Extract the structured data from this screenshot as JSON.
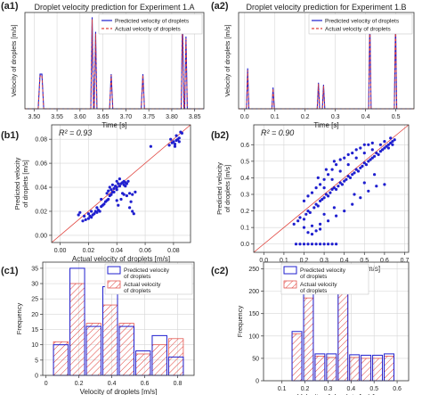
{
  "colors": {
    "blue": "#1f1fcf",
    "red": "#e0403a",
    "grid": "#d6d6d6"
  },
  "chart_data": [
    {
      "id": "a1",
      "panel_label": "(a1)",
      "type": "line",
      "title": "Droplet velocity prediction for Experiment 1.A",
      "xlabel": "Time [s]",
      "ylabel": "Velocity of droplets [m/s]",
      "xlim": [
        3.48,
        3.87
      ],
      "ylim": [
        0,
        1
      ],
      "xticks": [
        3.5,
        3.55,
        3.6,
        3.65,
        3.7,
        3.75,
        3.8,
        3.85
      ],
      "xtick_labels": [
        "3.50",
        "3.55",
        "3.60",
        "3.65",
        "3.70",
        "3.75",
        "3.80",
        "3.85"
      ],
      "legend_position": "top-right",
      "series": [
        {
          "name": "Predicted velocity of droplets",
          "style": "solid",
          "x": [
            3.48,
            3.509,
            3.513,
            3.517,
            3.521,
            3.6235,
            3.6265,
            3.6295,
            3.631,
            3.634,
            3.637,
            3.6645,
            3.668,
            3.6715,
            3.7335,
            3.737,
            3.7405,
            3.8205,
            3.8235,
            3.8265,
            3.828,
            3.831,
            3.834,
            3.87
          ],
          "y": [
            0,
            0,
            0.36,
            0.36,
            0,
            0,
            0.95,
            0,
            0,
            0.8,
            0,
            0,
            0.36,
            0,
            0,
            0.36,
            0,
            0,
            0.95,
            0,
            0,
            0.75,
            0,
            0
          ]
        },
        {
          "name": "Actual velocity of droplets",
          "style": "dashed",
          "x": [
            3.48,
            3.509,
            3.513,
            3.517,
            3.521,
            3.6235,
            3.6265,
            3.6295,
            3.631,
            3.634,
            3.637,
            3.6645,
            3.668,
            3.6715,
            3.7335,
            3.737,
            3.7405,
            3.8205,
            3.8235,
            3.8265,
            3.828,
            3.831,
            3.834,
            3.87
          ],
          "y": [
            0,
            0,
            0.34,
            0.35,
            0,
            0,
            0.93,
            0,
            0,
            0.78,
            0,
            0,
            0.35,
            0,
            0,
            0.35,
            0,
            0,
            0.92,
            0,
            0,
            0.73,
            0,
            0
          ]
        }
      ]
    },
    {
      "id": "a2",
      "panel_label": "(a2)",
      "type": "line",
      "title": "Droplet velocity prediction for Experiment 1.B",
      "xlabel": "Time [s]",
      "ylabel": "Velocity of droplets [m/s]",
      "xlim": [
        -0.02,
        0.56
      ],
      "ylim": [
        0,
        1
      ],
      "xticks": [
        0.0,
        0.1,
        0.2,
        0.3,
        0.4,
        0.5
      ],
      "xtick_labels": [
        "0.0",
        "0.1",
        "0.2",
        "0.3",
        "0.4",
        "0.5"
      ],
      "legend_position": "top-right",
      "series": [
        {
          "name": "Predicted velocity of droplets",
          "style": "solid",
          "x": [
            -0.02,
            0.006,
            0.01,
            0.014,
            0.09,
            0.094,
            0.098,
            0.24,
            0.244,
            0.248,
            0.257,
            0.261,
            0.265,
            0.41,
            0.414,
            0.418,
            0.495,
            0.499,
            0.503,
            0.56
          ],
          "y": [
            0,
            0,
            0.42,
            0,
            0,
            0.22,
            0,
            0,
            0.27,
            0,
            0,
            0.25,
            0,
            0,
            0.96,
            0,
            0,
            0.92,
            0,
            0
          ]
        },
        {
          "name": "Actual velocity of droplets",
          "style": "dashed",
          "x": [
            -0.02,
            0.006,
            0.01,
            0.014,
            0.09,
            0.094,
            0.098,
            0.24,
            0.244,
            0.248,
            0.257,
            0.261,
            0.265,
            0.41,
            0.414,
            0.418,
            0.495,
            0.499,
            0.503,
            0.56
          ],
          "y": [
            0,
            0,
            0.4,
            0,
            0,
            0.21,
            0,
            0,
            0.26,
            0,
            0,
            0.24,
            0,
            0,
            0.94,
            0,
            0,
            0.9,
            0,
            0
          ]
        }
      ]
    },
    {
      "id": "b1",
      "panel_label": "(b1)",
      "type": "scatter",
      "annotation": "R² = 0.93",
      "xlabel": "Actual velocity of droplets [m/s]",
      "ylabel_lines": [
        "Predicted velocity",
        "of droplets [m/s]"
      ],
      "xlim": [
        -0.006,
        0.092
      ],
      "ylim": [
        -0.006,
        0.092
      ],
      "xticks": [
        0.0,
        0.02,
        0.04,
        0.06,
        0.08
      ],
      "xtick_labels": [
        "0.00",
        "0.02",
        "0.04",
        "0.06",
        "0.08"
      ],
      "yticks": [
        0.0,
        0.02,
        0.04,
        0.06,
        0.08
      ],
      "ytick_labels": [
        "0.00",
        "0.02",
        "0.04",
        "0.06",
        "0.08"
      ],
      "identity_line": [
        -0.006,
        0.092
      ],
      "points": [
        [
          0.016,
          0.012
        ],
        [
          0.018,
          0.013
        ],
        [
          0.017,
          0.016
        ],
        [
          0.02,
          0.014
        ],
        [
          0.021,
          0.016
        ],
        [
          0.022,
          0.015
        ],
        [
          0.02,
          0.018
        ],
        [
          0.023,
          0.017
        ],
        [
          0.024,
          0.018
        ],
        [
          0.022,
          0.02
        ],
        [
          0.025,
          0.02
        ],
        [
          0.026,
          0.019
        ],
        [
          0.027,
          0.021
        ],
        [
          0.028,
          0.02
        ],
        [
          0.026,
          0.023
        ],
        [
          0.029,
          0.024
        ],
        [
          0.03,
          0.025
        ],
        [
          0.031,
          0.026
        ],
        [
          0.032,
          0.028
        ],
        [
          0.029,
          0.03
        ],
        [
          0.033,
          0.029
        ],
        [
          0.034,
          0.03
        ],
        [
          0.035,
          0.033
        ],
        [
          0.033,
          0.035
        ],
        [
          0.036,
          0.034
        ],
        [
          0.034,
          0.037
        ],
        [
          0.037,
          0.036
        ],
        [
          0.036,
          0.038
        ],
        [
          0.038,
          0.039
        ],
        [
          0.035,
          0.04
        ],
        [
          0.04,
          0.04
        ],
        [
          0.039,
          0.041
        ],
        [
          0.041,
          0.043
        ],
        [
          0.037,
          0.042
        ],
        [
          0.042,
          0.041
        ],
        [
          0.043,
          0.043
        ],
        [
          0.04,
          0.045
        ],
        [
          0.044,
          0.044
        ],
        [
          0.045,
          0.042
        ],
        [
          0.046,
          0.044
        ],
        [
          0.047,
          0.043
        ],
        [
          0.048,
          0.045
        ],
        [
          0.042,
          0.047
        ],
        [
          0.045,
          0.045
        ],
        [
          0.046,
          0.041
        ],
        [
          0.036,
          0.034
        ],
        [
          0.038,
          0.036
        ],
        [
          0.04,
          0.038
        ],
        [
          0.052,
          0.018
        ],
        [
          0.051,
          0.02
        ],
        [
          0.049,
          0.023
        ],
        [
          0.05,
          0.028
        ],
        [
          0.051,
          0.034
        ],
        [
          0.049,
          0.035
        ],
        [
          0.053,
          0.036
        ],
        [
          0.044,
          0.035
        ],
        [
          0.047,
          0.033
        ],
        [
          0.045,
          0.034
        ],
        [
          0.077,
          0.075
        ],
        [
          0.079,
          0.077
        ],
        [
          0.08,
          0.078
        ],
        [
          0.081,
          0.076
        ],
        [
          0.082,
          0.079
        ],
        [
          0.083,
          0.08
        ],
        [
          0.084,
          0.078
        ],
        [
          0.082,
          0.083
        ],
        [
          0.085,
          0.086
        ],
        [
          0.084,
          0.081
        ],
        [
          0.078,
          0.08
        ],
        [
          0.081,
          0.074
        ],
        [
          0.086,
          0.085
        ],
        [
          0.064,
          0.074
        ],
        [
          0.041,
          0.025
        ],
        [
          0.04,
          0.029
        ],
        [
          0.043,
          0.03
        ],
        [
          0.013,
          0.017
        ],
        [
          0.014,
          0.019
        ]
      ]
    },
    {
      "id": "b2",
      "panel_label": "(b2)",
      "type": "scatter",
      "annotation": "R² = 0.90",
      "xlabel": "Actual velocity of droplets [m/s]",
      "ylabel_lines": [
        "Predicted velocity",
        "of droplets [m/s]"
      ],
      "xlim": [
        -0.05,
        0.72
      ],
      "ylim": [
        -0.05,
        0.72
      ],
      "xticks": [
        0.0,
        0.1,
        0.2,
        0.3,
        0.4,
        0.5,
        0.6,
        0.7
      ],
      "xtick_labels": [
        "0.0",
        "0.1",
        "0.2",
        "0.3",
        "0.4",
        "0.5",
        "0.6",
        "0.7"
      ],
      "yticks": [
        0.0,
        0.1,
        0.2,
        0.3,
        0.4,
        0.5,
        0.6
      ],
      "ytick_labels": [
        "0.0",
        "0.1",
        "0.2",
        "0.3",
        "0.4",
        "0.5",
        "0.6"
      ],
      "identity_line": [
        -0.05,
        0.72
      ],
      "points": [
        [
          0.15,
          0.12
        ],
        [
          0.17,
          0.14
        ],
        [
          0.18,
          0.16
        ],
        [
          0.2,
          0.15
        ],
        [
          0.21,
          0.18
        ],
        [
          0.22,
          0.2
        ],
        [
          0.23,
          0.19
        ],
        [
          0.25,
          0.22
        ],
        [
          0.26,
          0.24
        ],
        [
          0.27,
          0.23
        ],
        [
          0.28,
          0.26
        ],
        [
          0.29,
          0.27
        ],
        [
          0.3,
          0.28
        ],
        [
          0.31,
          0.3
        ],
        [
          0.32,
          0.29
        ],
        [
          0.33,
          0.31
        ],
        [
          0.34,
          0.33
        ],
        [
          0.35,
          0.34
        ],
        [
          0.36,
          0.33
        ],
        [
          0.37,
          0.35
        ],
        [
          0.38,
          0.37
        ],
        [
          0.39,
          0.36
        ],
        [
          0.4,
          0.38
        ],
        [
          0.41,
          0.39
        ],
        [
          0.42,
          0.41
        ],
        [
          0.43,
          0.4
        ],
        [
          0.44,
          0.42
        ],
        [
          0.45,
          0.43
        ],
        [
          0.46,
          0.45
        ],
        [
          0.47,
          0.44
        ],
        [
          0.48,
          0.46
        ],
        [
          0.49,
          0.47
        ],
        [
          0.5,
          0.49
        ],
        [
          0.51,
          0.48
        ],
        [
          0.52,
          0.5
        ],
        [
          0.53,
          0.51
        ],
        [
          0.54,
          0.52
        ],
        [
          0.55,
          0.53
        ],
        [
          0.56,
          0.55
        ],
        [
          0.57,
          0.54
        ],
        [
          0.58,
          0.56
        ],
        [
          0.59,
          0.57
        ],
        [
          0.6,
          0.58
        ],
        [
          0.61,
          0.59
        ],
        [
          0.62,
          0.6
        ],
        [
          0.63,
          0.61
        ],
        [
          0.64,
          0.62
        ],
        [
          0.2,
          0.26
        ],
        [
          0.22,
          0.29
        ],
        [
          0.24,
          0.31
        ],
        [
          0.26,
          0.34
        ],
        [
          0.28,
          0.36
        ],
        [
          0.3,
          0.39
        ],
        [
          0.32,
          0.42
        ],
        [
          0.34,
          0.45
        ],
        [
          0.36,
          0.48
        ],
        [
          0.38,
          0.51
        ],
        [
          0.4,
          0.52
        ],
        [
          0.42,
          0.54
        ],
        [
          0.44,
          0.55
        ],
        [
          0.46,
          0.57
        ],
        [
          0.48,
          0.58
        ],
        [
          0.5,
          0.6
        ],
        [
          0.52,
          0.6
        ],
        [
          0.54,
          0.61
        ],
        [
          0.27,
          0.4
        ],
        [
          0.31,
          0.45
        ],
        [
          0.35,
          0.5
        ],
        [
          0.3,
          0.34
        ],
        [
          0.34,
          0.39
        ],
        [
          0.38,
          0.44
        ],
        [
          0.42,
          0.48
        ],
        [
          0.46,
          0.52
        ],
        [
          0.5,
          0.55
        ],
        [
          0.54,
          0.57
        ],
        [
          0.58,
          0.6
        ],
        [
          0.2,
          0.1
        ],
        [
          0.24,
          0.11
        ],
        [
          0.28,
          0.12
        ],
        [
          0.32,
          0.14
        ],
        [
          0.36,
          0.17
        ],
        [
          0.4,
          0.2
        ],
        [
          0.44,
          0.24
        ],
        [
          0.48,
          0.28
        ],
        [
          0.52,
          0.32
        ],
        [
          0.56,
          0.35
        ],
        [
          0.6,
          0.36
        ],
        [
          0.3,
          0.18
        ],
        [
          0.35,
          0.22
        ],
        [
          0.45,
          0.3
        ],
        [
          0.5,
          0.37
        ],
        [
          0.55,
          0.42
        ],
        [
          0.16,
          0.0
        ],
        [
          0.18,
          0.0
        ],
        [
          0.2,
          0.0
        ],
        [
          0.22,
          0.0
        ],
        [
          0.24,
          0.0
        ],
        [
          0.26,
          0.0
        ],
        [
          0.28,
          0.0
        ],
        [
          0.3,
          0.0
        ],
        [
          0.32,
          0.0
        ],
        [
          0.34,
          0.0
        ],
        [
          0.36,
          0.0
        ],
        [
          0.24,
          0.06
        ],
        [
          0.26,
          0.08
        ],
        [
          0.22,
          0.07
        ],
        [
          0.28,
          0.09
        ],
        [
          0.65,
          0.63
        ],
        [
          0.64,
          0.6
        ],
        [
          0.63,
          0.64
        ],
        [
          0.62,
          0.58
        ],
        [
          0.6,
          0.62
        ]
      ]
    },
    {
      "id": "c1",
      "panel_label": "(c1)",
      "type": "bar",
      "xlabel": "Velocity of droplets [m/s]",
      "ylabel": "Frequency",
      "xlim": [
        -0.02,
        0.9
      ],
      "ylim": [
        0,
        37
      ],
      "xticks": [
        0.0,
        0.2,
        0.4,
        0.6,
        0.8
      ],
      "xtick_labels": [
        "0",
        "0.2",
        "0.4",
        "0.6",
        "0.8"
      ],
      "yticks": [
        0,
        5,
        10,
        15,
        20,
        25,
        30,
        35
      ],
      "ytick_labels": [
        "0",
        "5",
        "10",
        "15",
        "20",
        "25",
        "30",
        "35"
      ],
      "legend_position": "top-right",
      "bin_edges": [
        0.04,
        0.14,
        0.24,
        0.34,
        0.44,
        0.54,
        0.64,
        0.74,
        0.84
      ],
      "series": [
        {
          "name": "Predicted velocity of droplets",
          "style": "outline",
          "values": [
            10,
            35,
            16,
            29,
            16,
            8,
            13,
            6
          ]
        },
        {
          "name": "Actual velocity of droplets",
          "style": "hatched",
          "values": [
            11,
            30,
            17,
            23,
            17,
            7,
            10,
            12
          ]
        }
      ]
    },
    {
      "id": "c2",
      "panel_label": "(c2)",
      "type": "bar",
      "xlabel": "Velocity of droplets [m/s]",
      "ylabel": "Frequency",
      "xlim": [
        0.02,
        0.65
      ],
      "ylim": [
        0,
        265
      ],
      "xticks": [
        0.1,
        0.2,
        0.3,
        0.4,
        0.5,
        0.6
      ],
      "xtick_labels": [
        "0.1",
        "0.2",
        "0.3",
        "0.4",
        "0.5",
        "0.6"
      ],
      "yticks": [
        0,
        50,
        100,
        150,
        200,
        250
      ],
      "ytick_labels": [
        "0",
        "50",
        "100",
        "150",
        "200",
        "250"
      ],
      "legend_position": "top-center",
      "bin_edges": [
        0.14,
        0.19,
        0.24,
        0.29,
        0.34,
        0.39,
        0.44,
        0.49,
        0.54,
        0.59
      ],
      "series": [
        {
          "name": "Predicted velocity of droplets",
          "style": "outline",
          "values": [
            110,
            205,
            60,
            60,
            255,
            58,
            57,
            57,
            60
          ]
        },
        {
          "name": "Actual velocity of droplets",
          "style": "hatched",
          "values": [
            105,
            185,
            55,
            52,
            240,
            52,
            50,
            50,
            55
          ]
        }
      ]
    }
  ]
}
